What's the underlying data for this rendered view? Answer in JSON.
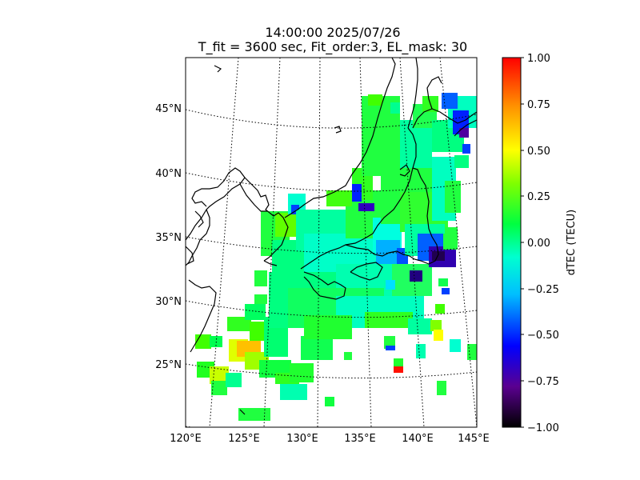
{
  "title_line1": "14:00:00 2025/07/26",
  "title_line2": "T_fit = 3600 sec, Fit_order:3, EL_mask: 30",
  "lon_labels": [
    "120°E",
    "125°E",
    "130°E",
    "135°E",
    "140°E",
    "145°E"
  ],
  "lat_labels": [
    "25°N",
    "30°N",
    "35°N",
    "40°N",
    "45°N"
  ],
  "colorbar": {
    "label": "dTEC (TECU)",
    "ticks": [
      "1.00",
      "0.75",
      "0.50",
      "0.25",
      "0.00",
      "−0.25",
      "−0.50",
      "−0.75",
      "−1.00"
    ],
    "min": -1.0,
    "max": 1.0,
    "colormap": "nipy_spectral-like",
    "stops": [
      "#000000",
      "#5a0090",
      "#0000ff",
      "#00bfff",
      "#00ffd0",
      "#00ff40",
      "#80ff00",
      "#ffff00",
      "#ff9000",
      "#ff0000"
    ]
  },
  "map": {
    "lon_range": [
      120,
      145
    ],
    "lat_range": [
      20,
      49
    ],
    "grid": "dotted",
    "coastline_color": "#000000"
  }
}
